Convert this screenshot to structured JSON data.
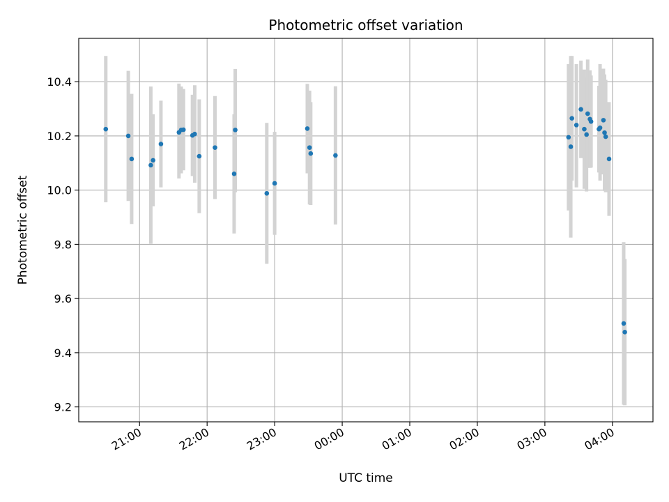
{
  "chart_data": {
    "type": "scatter",
    "title": "Photometric offset variation",
    "xlabel": "UTC time",
    "ylabel": "Photometric offset",
    "x_axis_kind": "time",
    "x_tick_labels": [
      "21:00",
      "22:00",
      "23:00",
      "00:00",
      "01:00",
      "02:00",
      "03:00",
      "04:00"
    ],
    "y_ticks": [
      9.2,
      9.4,
      9.6,
      9.8,
      10.0,
      10.2,
      10.4
    ],
    "y_tick_labels": [
      "9.2",
      "9.4",
      "9.6",
      "9.8",
      "10.0",
      "10.2",
      "10.4"
    ],
    "ylim": [
      9.145,
      10.56
    ],
    "xlim": [
      "20:06",
      "04:36"
    ],
    "grid": true,
    "colors": {
      "points": "#1f77b4",
      "errorbars": "#d3d3d3",
      "grid": "#b0b0b0"
    },
    "points": [
      {
        "t": "20:30",
        "y": 10.225,
        "lo": 9.955,
        "hi": 10.495
      },
      {
        "t": "20:50",
        "y": 10.2,
        "lo": 9.96,
        "hi": 10.44
      },
      {
        "t": "20:53",
        "y": 10.115,
        "lo": 9.875,
        "hi": 10.355
      },
      {
        "t": "21:10",
        "y": 10.092,
        "lo": 9.802,
        "hi": 10.382
      },
      {
        "t": "21:12",
        "y": 10.11,
        "lo": 9.94,
        "hi": 10.28
      },
      {
        "t": "21:19",
        "y": 10.17,
        "lo": 10.01,
        "hi": 10.33
      },
      {
        "t": "21:35",
        "y": 10.213,
        "lo": 10.043,
        "hi": 10.393
      },
      {
        "t": "21:37",
        "y": 10.222,
        "lo": 10.062,
        "hi": 10.382
      },
      {
        "t": "21:39",
        "y": 10.223,
        "lo": 10.073,
        "hi": 10.373
      },
      {
        "t": "21:47",
        "y": 10.202,
        "lo": 10.052,
        "hi": 10.352
      },
      {
        "t": "21:49",
        "y": 10.207,
        "lo": 10.027,
        "hi": 10.387
      },
      {
        "t": "21:53",
        "y": 10.125,
        "lo": 9.915,
        "hi": 10.335
      },
      {
        "t": "22:07",
        "y": 10.157,
        "lo": 9.967,
        "hi": 10.347
      },
      {
        "t": "22:24",
        "y": 10.06,
        "lo": 9.84,
        "hi": 10.28
      },
      {
        "t": "22:25",
        "y": 10.222,
        "lo": 9.992,
        "hi": 10.447
      },
      {
        "t": "22:53",
        "y": 9.988,
        "lo": 9.728,
        "hi": 10.248
      },
      {
        "t": "23:00",
        "y": 10.025,
        "lo": 9.835,
        "hi": 10.215
      },
      {
        "t": "23:29",
        "y": 10.227,
        "lo": 10.062,
        "hi": 10.392
      },
      {
        "t": "23:31",
        "y": 10.157,
        "lo": 9.947,
        "hi": 10.367
      },
      {
        "t": "23:32",
        "y": 10.135,
        "lo": 9.945,
        "hi": 10.325
      },
      {
        "t": "23:54",
        "y": 10.128,
        "lo": 9.873,
        "hi": 10.383
      },
      {
        "t": "03:21",
        "y": 10.195,
        "lo": 9.925,
        "hi": 10.465
      },
      {
        "t": "03:23",
        "y": 10.16,
        "lo": 9.825,
        "hi": 10.495
      },
      {
        "t": "03:24",
        "y": 10.265,
        "lo": 10.035,
        "hi": 10.495
      },
      {
        "t": "03:28",
        "y": 10.24,
        "lo": 10.01,
        "hi": 10.465
      },
      {
        "t": "03:32",
        "y": 10.298,
        "lo": 10.118,
        "hi": 10.478
      },
      {
        "t": "03:35",
        "y": 10.225,
        "lo": 10.005,
        "hi": 10.445
      },
      {
        "t": "03:37",
        "y": 10.205,
        "lo": 9.995,
        "hi": 10.415
      },
      {
        "t": "03:38",
        "y": 10.282,
        "lo": 10.082,
        "hi": 10.482
      },
      {
        "t": "03:40",
        "y": 10.262,
        "lo": 10.082,
        "hi": 10.442
      },
      {
        "t": "03:41",
        "y": 10.253,
        "lo": 10.083,
        "hi": 10.423
      },
      {
        "t": "03:48",
        "y": 10.225,
        "lo": 10.065,
        "hi": 10.385
      },
      {
        "t": "03:49",
        "y": 10.23,
        "lo": 10.035,
        "hi": 10.465
      },
      {
        "t": "03:52",
        "y": 10.258,
        "lo": 10.058,
        "hi": 10.448
      },
      {
        "t": "03:53",
        "y": 10.212,
        "lo": 9.997,
        "hi": 10.427
      },
      {
        "t": "03:54",
        "y": 10.197,
        "lo": 9.992,
        "hi": 10.407
      },
      {
        "t": "03:57",
        "y": 10.115,
        "lo": 9.905,
        "hi": 10.325
      },
      {
        "t": "04:10",
        "y": 9.508,
        "lo": 9.208,
        "hi": 9.808
      },
      {
        "t": "04:11",
        "y": 9.476,
        "lo": 9.206,
        "hi": 9.746
      }
    ]
  }
}
